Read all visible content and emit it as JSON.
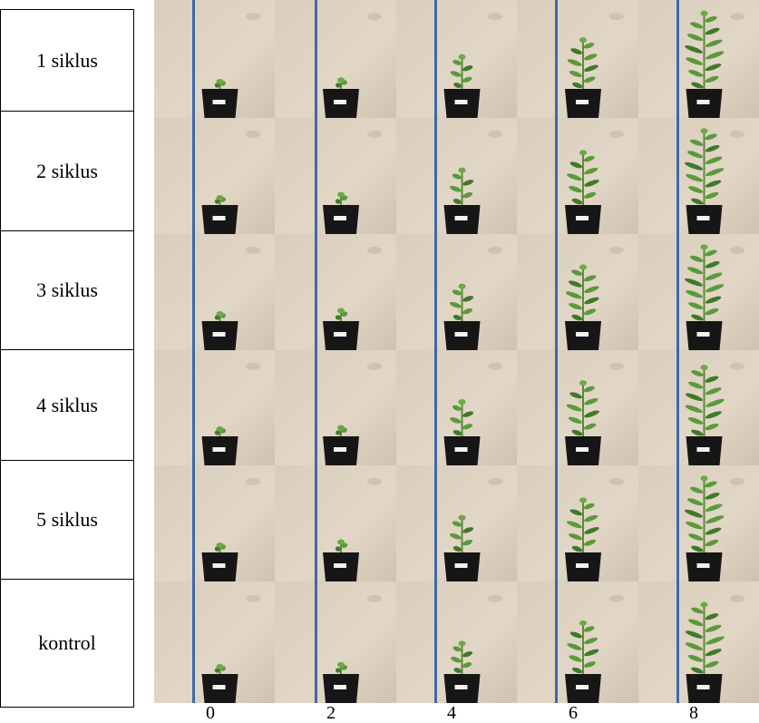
{
  "rows": [
    {
      "label": "1 siklus",
      "heights": [
        0.08,
        0.1,
        0.36,
        0.55,
        0.85
      ]
    },
    {
      "label": "2 siklus",
      "heights": [
        0.07,
        0.12,
        0.4,
        0.6,
        0.85
      ]
    },
    {
      "label": "3 siklus",
      "heights": [
        0.08,
        0.12,
        0.4,
        0.62,
        0.85
      ]
    },
    {
      "label": "4 siklus",
      "heights": [
        0.07,
        0.1,
        0.4,
        0.62,
        0.8
      ]
    },
    {
      "label": "5 siklus",
      "heights": [
        0.08,
        0.12,
        0.4,
        0.6,
        0.85
      ]
    },
    {
      "label": "kontrol",
      "heights": [
        0.06,
        0.1,
        0.33,
        0.55,
        0.75
      ]
    }
  ],
  "x_ticks": [
    "0",
    "2",
    "4",
    "6",
    "8"
  ]
}
